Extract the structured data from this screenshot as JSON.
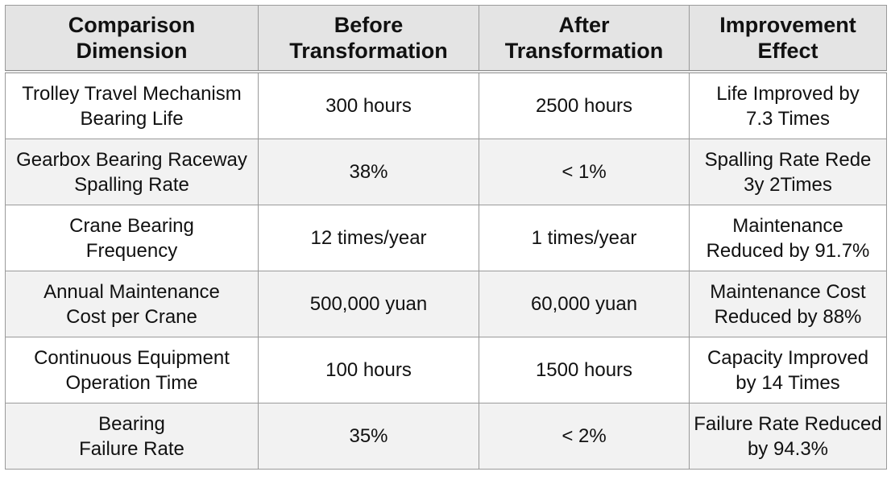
{
  "table": {
    "header": [
      [
        "Comparison",
        "Dimension"
      ],
      [
        "Before",
        "Transformation"
      ],
      [
        "After",
        "Transformation"
      ],
      [
        "Improvement",
        "Effect"
      ]
    ],
    "rows": [
      [
        [
          "Trolley Travel Mechanism",
          "Bearing Life"
        ],
        [
          "300 hours"
        ],
        [
          "2500 hours"
        ],
        [
          "Life Improved by",
          "7.3 Times"
        ]
      ],
      [
        [
          "Gearbox Bearing Raceway",
          "Spalling Rate"
        ],
        [
          "38%"
        ],
        [
          "< 1%"
        ],
        [
          "Spalling Rate Rede",
          "3y 2Times"
        ]
      ],
      [
        [
          "Crane Bearing",
          "Frequency"
        ],
        [
          "12 times/year"
        ],
        [
          "1 times/year"
        ],
        [
          "Maintenance",
          "Reduced by 91.7%"
        ]
      ],
      [
        [
          "Annual Maintenance",
          "Cost per Crane"
        ],
        [
          "500,000 yuan"
        ],
        [
          "60,000 yuan"
        ],
        [
          "Maintenance Cost",
          "Reduced by 88%"
        ]
      ],
      [
        [
          "Continuous Equipment",
          "Operation Time"
        ],
        [
          "100 hours"
        ],
        [
          "1500 hours"
        ],
        [
          "Capacity Improved",
          "by 14 Times"
        ]
      ],
      [
        [
          "Bearing",
          "Failure Rate"
        ],
        [
          "35%"
        ],
        [
          "< 2%"
        ],
        [
          "Failure Rate Reduced",
          "by 94.3%"
        ]
      ]
    ]
  }
}
